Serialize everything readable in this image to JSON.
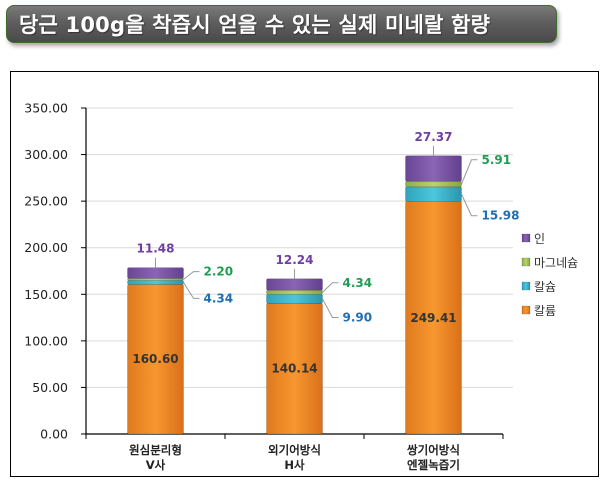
{
  "title": "당근 100g을 착즙시 얻을 수 있는 실제 미네랄 함량",
  "chart_data": {
    "type": "bar",
    "stacked": true,
    "title": "당근 100g을 착즙시 얻을 수 있는 실제 미네랄 함량",
    "xlabel": "",
    "ylabel": "",
    "ylim": [
      0,
      350
    ],
    "yticks": [
      "0.00",
      "50.00",
      "100.00",
      "150.00",
      "200.00",
      "250.00",
      "300.00",
      "350.00"
    ],
    "ytick_values": [
      0,
      50,
      100,
      150,
      200,
      250,
      300,
      350
    ],
    "grid": true,
    "legend_position": "right",
    "categories": [
      [
        "원심분리형",
        "V사"
      ],
      [
        "외기어방식",
        "H사"
      ],
      [
        "쌍기어방식",
        "엔젤녹즙기"
      ]
    ],
    "series": [
      {
        "name": "칼륨",
        "values": [
          160.6,
          140.14,
          249.41
        ],
        "labels": [
          "160.60",
          "140.14",
          "249.41"
        ],
        "color": "#f0892a",
        "label_color": "#333333"
      },
      {
        "name": "칼슘",
        "values": [
          4.34,
          9.9,
          15.98
        ],
        "labels": [
          "4.34",
          "9.90",
          "15.98"
        ],
        "color": "#3bb3cc",
        "label_color": "#1f6fb2"
      },
      {
        "name": "마그네슘",
        "values": [
          2.2,
          4.34,
          5.91
        ],
        "labels": [
          "2.20",
          "4.34",
          "5.91"
        ],
        "color": "#9bbb59",
        "label_color": "#1f9e52"
      },
      {
        "name": "인",
        "values": [
          11.48,
          12.24,
          27.37
        ],
        "labels": [
          "11.48",
          "12.24",
          "27.37"
        ],
        "color": "#7b55a6",
        "label_color": "#7040a0"
      }
    ],
    "legend_order": [
      "인",
      "마그네슘",
      "칼슘",
      "칼륨"
    ]
  }
}
